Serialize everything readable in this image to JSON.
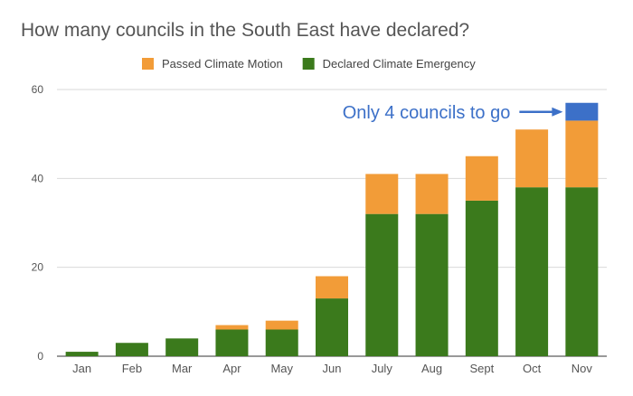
{
  "chart_data": {
    "type": "bar",
    "stacked": true,
    "title": "How many councils in the South East have declared?",
    "categories": [
      "Jan",
      "Feb",
      "Mar",
      "Apr",
      "May",
      "Jun",
      "July",
      "Aug",
      "Sept",
      "Oct",
      "Nov"
    ],
    "series": [
      {
        "name": "Declared Climate Emergency",
        "color": "#3b7a1c",
        "values": [
          1,
          3,
          4,
          6,
          6,
          13,
          32,
          32,
          35,
          38,
          38
        ]
      },
      {
        "name": "Passed Climate Motion",
        "color": "#f29c38",
        "values": [
          0,
          0,
          0,
          1,
          2,
          5,
          9,
          9,
          10,
          13,
          15
        ]
      },
      {
        "name": "",
        "color": "#3c70c8",
        "values": [
          0,
          0,
          0,
          0,
          0,
          0,
          0,
          0,
          0,
          0,
          4
        ]
      }
    ],
    "legend_order": [
      "Passed Climate Motion",
      "Declared Climate Emergency"
    ],
    "legend_position": "top",
    "ylim": [
      0,
      60
    ],
    "yticks": [
      0,
      20,
      40,
      60
    ],
    "grid": true,
    "xlabel": "",
    "ylabel": "",
    "annotation": {
      "text": "Only 4 councils to go",
      "color": "#3c70c8",
      "target_category": "Nov"
    }
  }
}
